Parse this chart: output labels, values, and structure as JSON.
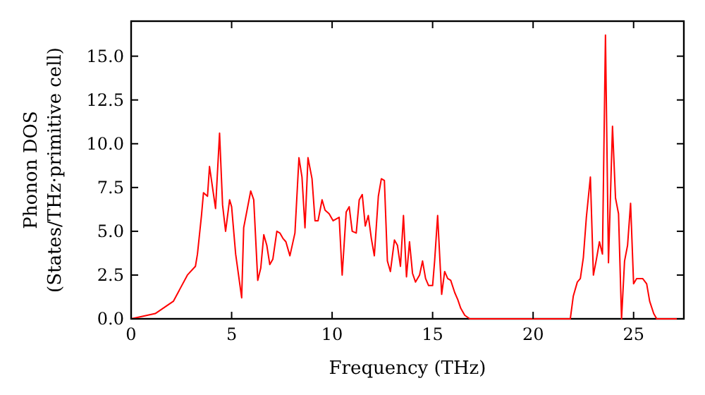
{
  "chart_data": {
    "type": "line",
    "xlabel": "Frequency (THz)",
    "ylabel": "Phonon DOS\n(States/THz·primitive cell)",
    "xlim": [
      0,
      27.5
    ],
    "ylim": [
      0,
      17
    ],
    "xticks": [
      0,
      5,
      10,
      15,
      20,
      25
    ],
    "yticks": [
      {
        "value": 0,
        "label": "0.0"
      },
      {
        "value": 2.5,
        "label": "2.5"
      },
      {
        "value": 5,
        "label": "5.0"
      },
      {
        "value": 7.5,
        "label": "7.5"
      },
      {
        "value": 10,
        "label": "10.0"
      },
      {
        "value": 12.5,
        "label": "12.5"
      },
      {
        "value": 15,
        "label": "15.0"
      }
    ],
    "grid": false,
    "marker": "none",
    "line_style": "solid",
    "series": [
      {
        "color": "#ff0000",
        "x": [
          0,
          1.2,
          2.1,
          2.8,
          3.2,
          3.3,
          3.5,
          3.6,
          3.8,
          3.9,
          4.1,
          4.2,
          4.4,
          4.55,
          4.7,
          4.9,
          5.0,
          5.2,
          5.5,
          5.6,
          5.95,
          6.1,
          6.3,
          6.45,
          6.6,
          6.75,
          6.9,
          7.05,
          7.25,
          7.4,
          7.55,
          7.7,
          7.9,
          8.15,
          8.35,
          8.5,
          8.65,
          8.8,
          9.0,
          9.15,
          9.3,
          9.5,
          9.65,
          9.85,
          10.05,
          10.35,
          10.5,
          10.7,
          10.85,
          11.0,
          11.2,
          11.35,
          11.5,
          11.65,
          11.8,
          11.95,
          12.1,
          12.3,
          12.45,
          12.6,
          12.75,
          12.9,
          13.1,
          13.25,
          13.4,
          13.55,
          13.7,
          13.85,
          14.0,
          14.15,
          14.35,
          14.5,
          14.65,
          14.8,
          15.0,
          15.1,
          15.25,
          15.45,
          15.6,
          15.75,
          15.9,
          16.1,
          16.25,
          16.4,
          16.6,
          16.85,
          21.85,
          22.0,
          22.2,
          22.35,
          22.5,
          22.65,
          22.85,
          23.0,
          23.15,
          23.3,
          23.45,
          23.6,
          23.75,
          23.95,
          24.1,
          24.25,
          24.4,
          24.55,
          24.7,
          24.85,
          25.0,
          25.15,
          25.45,
          25.65,
          25.8,
          26.0,
          26.15,
          27.45
        ],
        "values": [
          0,
          0.3,
          1.0,
          2.5,
          3.0,
          3.7,
          5.9,
          7.2,
          7.0,
          8.7,
          7.1,
          6.3,
          10.6,
          6.5,
          5.0,
          6.8,
          6.4,
          3.7,
          1.2,
          5.2,
          7.3,
          6.8,
          2.2,
          2.9,
          4.8,
          4.2,
          3.1,
          3.4,
          5.0,
          4.9,
          4.6,
          4.4,
          3.6,
          4.9,
          9.2,
          8.1,
          5.2,
          9.2,
          8.0,
          5.6,
          5.6,
          6.8,
          6.2,
          6.0,
          5.6,
          5.8,
          2.5,
          6.1,
          6.4,
          5.0,
          4.9,
          6.8,
          7.1,
          5.3,
          5.9,
          4.6,
          3.6,
          7.0,
          8.0,
          7.9,
          3.3,
          2.7,
          4.5,
          4.2,
          3.0,
          5.9,
          2.4,
          4.4,
          2.6,
          2.1,
          2.5,
          3.3,
          2.3,
          1.9,
          1.9,
          3.3,
          5.9,
          1.4,
          2.7,
          2.3,
          2.2,
          1.5,
          1.1,
          0.6,
          0.2,
          0,
          0,
          1.3,
          2.1,
          2.3,
          3.5,
          5.8,
          8.1,
          2.5,
          3.4,
          4.4,
          3.7,
          16.2,
          3.2,
          11.0,
          6.9,
          6.0,
          0,
          3.3,
          4.2,
          6.6,
          2.0,
          2.3,
          2.3,
          2.0,
          1.0,
          0.3,
          0,
          0
        ]
      }
    ]
  }
}
